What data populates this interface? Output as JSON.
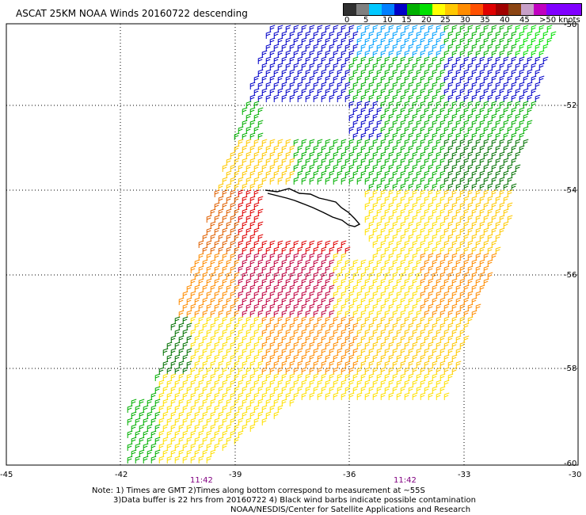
{
  "title": "ASCAT 25KM NOAA Winds 20160722 descending",
  "legend": {
    "colors": [
      "#303030",
      "#808080",
      "#00c8ff",
      "#0080ff",
      "#0000c8",
      "#00b000",
      "#00e000",
      "#ffff00",
      "#ffc800",
      "#ff8c00",
      "#ff5000",
      "#e00000",
      "#a00000",
      "#8b4513",
      "#c8a0c8",
      "#c000c0",
      "#8000ff"
    ],
    "labels": [
      "0",
      "5",
      "10",
      "15",
      "20",
      "25",
      "30",
      "35",
      "40",
      "45",
      ">50 knots"
    ]
  },
  "lat_labels": [
    "-50",
    "-52",
    "-54",
    "-56",
    "-58",
    "-60"
  ],
  "lon_labels": [
    "-45",
    "-42",
    "-39",
    "-36",
    "-33",
    "-30"
  ],
  "pass_times": [
    "11:42",
    "11:42"
  ],
  "notes": [
    "Note: 1) Times are GMT 2)Times along bottom correspond to measurement at ~55S",
    "3)Data buffer is 22 hrs from 20160722 4) Black wind barbs indicate possible contamination",
    "NOAA/NESDIS/Center for Satellite Applications and Research"
  ]
}
